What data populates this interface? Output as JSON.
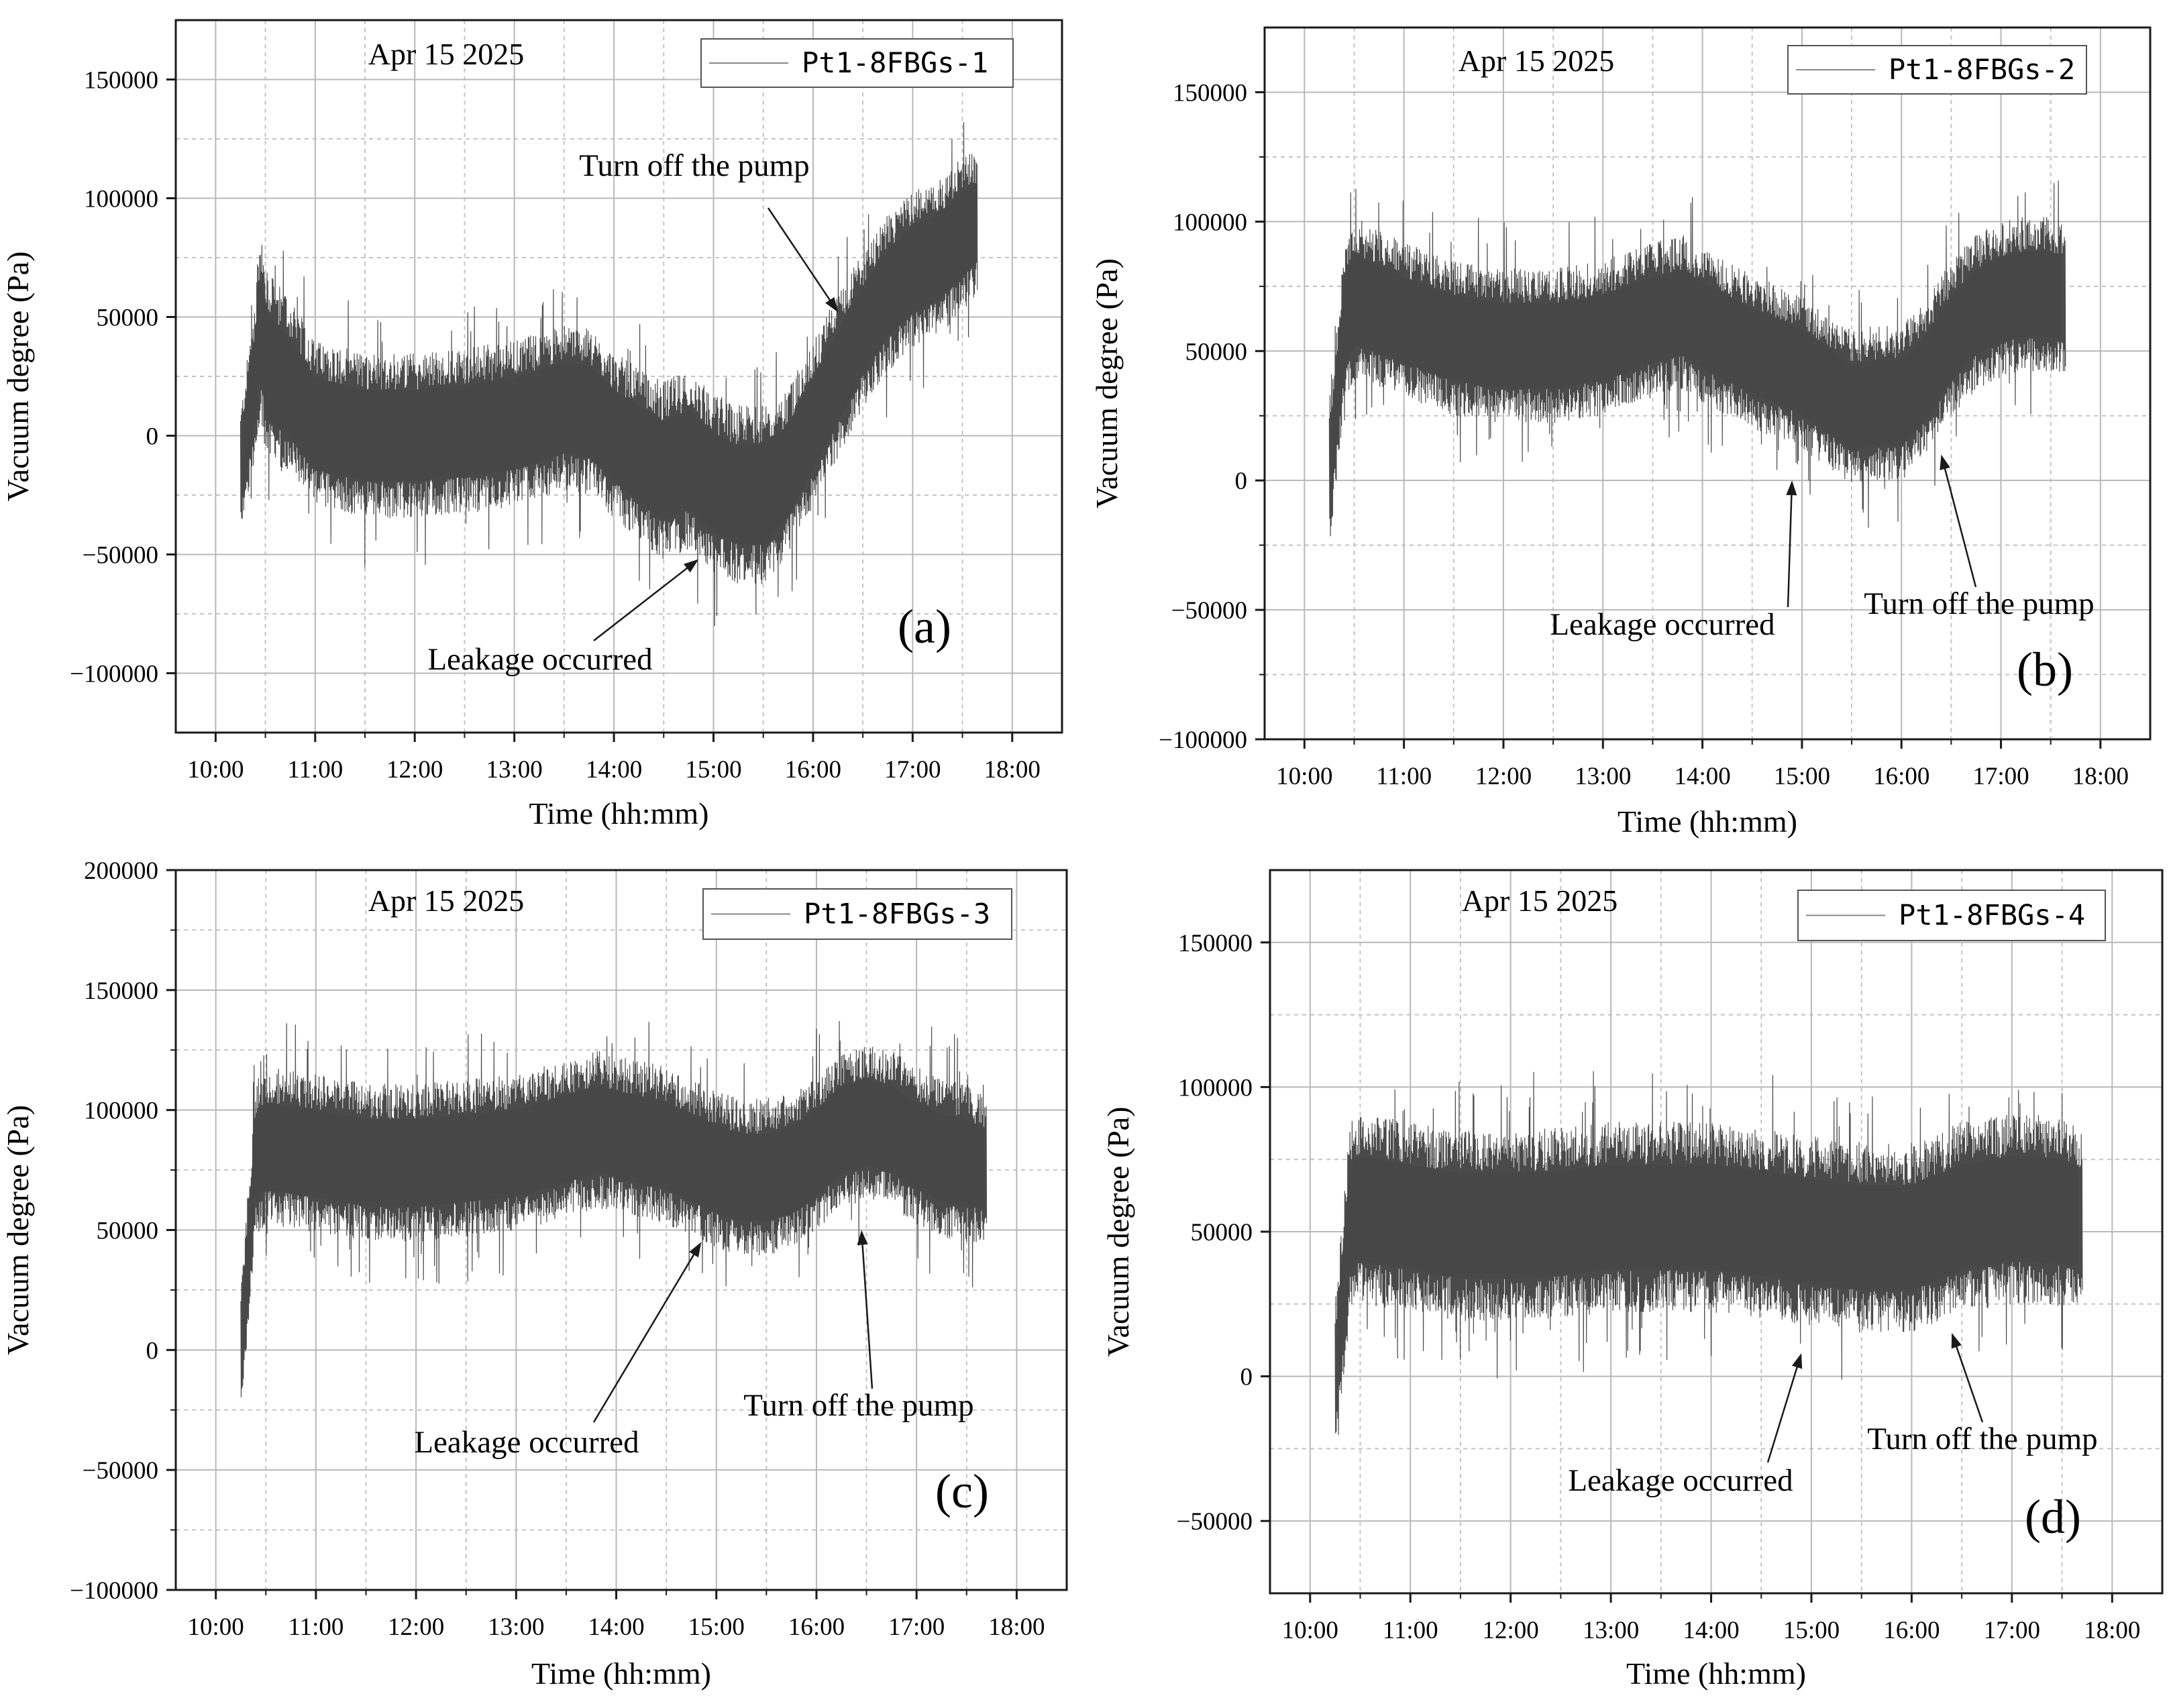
{
  "chart_data": [
    {
      "type": "line",
      "panel_label": "(a)",
      "date_label": "Apr 15 2025",
      "legend": [
        "Pt1-8FBGs-1"
      ],
      "legend_position": "top-right",
      "xlabel": "Time (hh:mm)",
      "ylabel": "Vacuum degree (Pa)",
      "xticks": [
        "10:00",
        "11:00",
        "12:00",
        "13:00",
        "14:00",
        "15:00",
        "16:00",
        "17:00",
        "18:00"
      ],
      "xlim": [
        9.6,
        18.5
      ],
      "ylim": [
        -125000,
        175000
      ],
      "yticks": [
        -100000,
        -50000,
        0,
        50000,
        100000,
        150000
      ],
      "ytick_labels": [
        "−100000",
        "−50000",
        "0",
        "50000",
        "100000",
        "150000"
      ],
      "grid": true,
      "series": [
        {
          "name": "Pt1-8FBGs-1",
          "x": [
            10.25,
            10.4,
            10.45,
            10.5,
            10.75,
            11,
            11.5,
            12,
            12.5,
            13,
            13.5,
            13.75,
            14,
            14.5,
            14.75,
            15,
            15.25,
            15.5,
            15.75,
            16,
            16.25,
            16.5,
            16.75,
            17,
            17.25,
            17.5,
            17.65
          ],
          "center": [
            -15000,
            25000,
            50000,
            30000,
            20000,
            5000,
            0,
            0,
            2000,
            5000,
            12000,
            10000,
            0,
            -15000,
            -10000,
            -20000,
            -25000,
            -25000,
            -15000,
            5000,
            25000,
            45000,
            60000,
            70000,
            75000,
            85000,
            90000
          ],
          "half_range": [
            25000,
            35000,
            40000,
            40000,
            38000,
            35000,
            35000,
            35000,
            35000,
            35000,
            35000,
            35000,
            35000,
            38000,
            38000,
            38000,
            38000,
            38000,
            35000,
            35000,
            35000,
            33000,
            33000,
            33000,
            33000,
            33000,
            30000
          ]
        }
      ],
      "annotations": [
        {
          "text": "Turn off the pump",
          "x": 16.25,
          "y": 52000
        },
        {
          "text": "Leakage occurred",
          "x": 14.85,
          "y": -52000
        }
      ]
    },
    {
      "type": "line",
      "panel_label": "(b)",
      "date_label": "Apr 15 2025",
      "legend": [
        "Pt1-8FBGs-2"
      ],
      "legend_position": "top-right",
      "xlabel": "Time (hh:mm)",
      "ylabel": "Vacuum degree (Pa)",
      "xticks": [
        "10:00",
        "11:00",
        "12:00",
        "13:00",
        "14:00",
        "15:00",
        "16:00",
        "17:00",
        "18:00"
      ],
      "xlim": [
        9.6,
        18.5
      ],
      "ylim": [
        -100000,
        175000
      ],
      "yticks": [
        -100000,
        -50000,
        0,
        50000,
        100000,
        150000
      ],
      "ytick_labels": [
        "−100000",
        "−50000",
        "0",
        "50000",
        "100000",
        "150000"
      ],
      "grid": true,
      "series": [
        {
          "name": "Pt1-8FBGs-2",
          "x": [
            10.25,
            10.4,
            10.5,
            11,
            11.5,
            12,
            12.5,
            13,
            13.5,
            13.8,
            14,
            14.5,
            15,
            15.25,
            15.5,
            15.75,
            16,
            16.25,
            16.5,
            16.75,
            17,
            17.25,
            17.5,
            17.65
          ],
          "center": [
            0,
            60000,
            70000,
            62000,
            55000,
            52000,
            52000,
            55000,
            62000,
            65000,
            60000,
            50000,
            42000,
            35000,
            28000,
            30000,
            30000,
            40000,
            55000,
            65000,
            70000,
            72000,
            72000,
            70000
          ],
          "half_range": [
            25000,
            30000,
            32000,
            30000,
            30000,
            30000,
            30000,
            30000,
            30000,
            30000,
            30000,
            30000,
            30000,
            30000,
            30000,
            30000,
            30000,
            30000,
            30000,
            30000,
            30000,
            30000,
            30000,
            28000
          ]
        }
      ],
      "annotations": [
        {
          "text": "Leakage occurred",
          "x": 14.9,
          "y": 0
        },
        {
          "text": "Turn off the pump",
          "x": 16.4,
          "y": 10000
        }
      ]
    },
    {
      "type": "line",
      "panel_label": "(c)",
      "date_label": "Apr 15 2025",
      "legend": [
        "Pt1-8FBGs-3"
      ],
      "legend_position": "top-right",
      "xlabel": "Time (hh:mm)",
      "ylabel": "Vacuum degree (Pa)",
      "xticks": [
        "10:00",
        "11:00",
        "12:00",
        "13:00",
        "14:00",
        "15:00",
        "16:00",
        "17:00",
        "18:00"
      ],
      "xlim": [
        9.6,
        18.5
      ],
      "ylim": [
        -100000,
        200000
      ],
      "yticks": [
        -100000,
        -50000,
        0,
        50000,
        100000,
        150000,
        200000
      ],
      "ytick_labels": [
        "−100000",
        "−50000",
        "0",
        "50000",
        "100000",
        "150000",
        "200000"
      ],
      "grid": true,
      "series": [
        {
          "name": "Pt1-8FBGs-3",
          "x": [
            10.25,
            10.4,
            10.5,
            11,
            11.5,
            12,
            12.5,
            13,
            13.5,
            13.8,
            14,
            14.5,
            15,
            15.25,
            15.5,
            15.75,
            16,
            16.25,
            16.5,
            16.75,
            17,
            17.25,
            17.5,
            17.7
          ],
          "center": [
            0,
            80000,
            85000,
            82000,
            78000,
            78000,
            80000,
            82000,
            88000,
            92000,
            90000,
            85000,
            75000,
            72000,
            72000,
            75000,
            82000,
            92000,
            95000,
            92000,
            85000,
            80000,
            78000,
            75000
          ],
          "half_range": [
            25000,
            32000,
            33000,
            33000,
            33000,
            33000,
            33000,
            33000,
            33000,
            33000,
            33000,
            33000,
            33000,
            33000,
            33000,
            33000,
            33000,
            33000,
            33000,
            33000,
            33000,
            33000,
            33000,
            30000
          ]
        }
      ],
      "annotations": [
        {
          "text": "Leakage occurred",
          "x": 14.85,
          "y": 45000
        },
        {
          "text": "Turn off the pump",
          "x": 16.45,
          "y": 50000
        }
      ]
    },
    {
      "type": "line",
      "panel_label": "(d)",
      "date_label": "Apr 15 2025",
      "legend": [
        "Pt1-8FBGs-4"
      ],
      "legend_position": "top-right",
      "xlabel": "Time (hh:mm)",
      "ylabel": "Vacuum degree (Pa)",
      "xticks": [
        "10:00",
        "11:00",
        "12:00",
        "13:00",
        "14:00",
        "15:00",
        "16:00",
        "17:00",
        "18:00"
      ],
      "xlim": [
        9.6,
        18.5
      ],
      "ylim": [
        -75000,
        175000
      ],
      "yticks": [
        -50000,
        0,
        50000,
        100000,
        150000
      ],
      "ytick_labels": [
        "−50000",
        "0",
        "50000",
        "100000",
        "150000"
      ],
      "grid": true,
      "series": [
        {
          "name": "Pt1-8FBGs-4",
          "x": [
            10.25,
            10.4,
            10.5,
            11,
            11.5,
            12,
            12.5,
            13,
            13.5,
            14,
            14.5,
            15,
            15.5,
            16,
            16.5,
            17,
            17.5,
            17.7
          ],
          "center": [
            0,
            55000,
            58000,
            55000,
            52000,
            52000,
            53000,
            55000,
            55000,
            55000,
            53000,
            50000,
            48000,
            48000,
            55000,
            58000,
            57000,
            55000
          ],
          "half_range": [
            25000,
            33000,
            33000,
            33000,
            33000,
            33000,
            33000,
            33000,
            33000,
            33000,
            33000,
            33000,
            33000,
            33000,
            33000,
            33000,
            33000,
            30000
          ]
        }
      ],
      "annotations": [
        {
          "text": "Leakage occurred",
          "x": 14.9,
          "y": 8000
        },
        {
          "text": "Turn off the pump",
          "x": 16.4,
          "y": 15000
        }
      ]
    }
  ]
}
